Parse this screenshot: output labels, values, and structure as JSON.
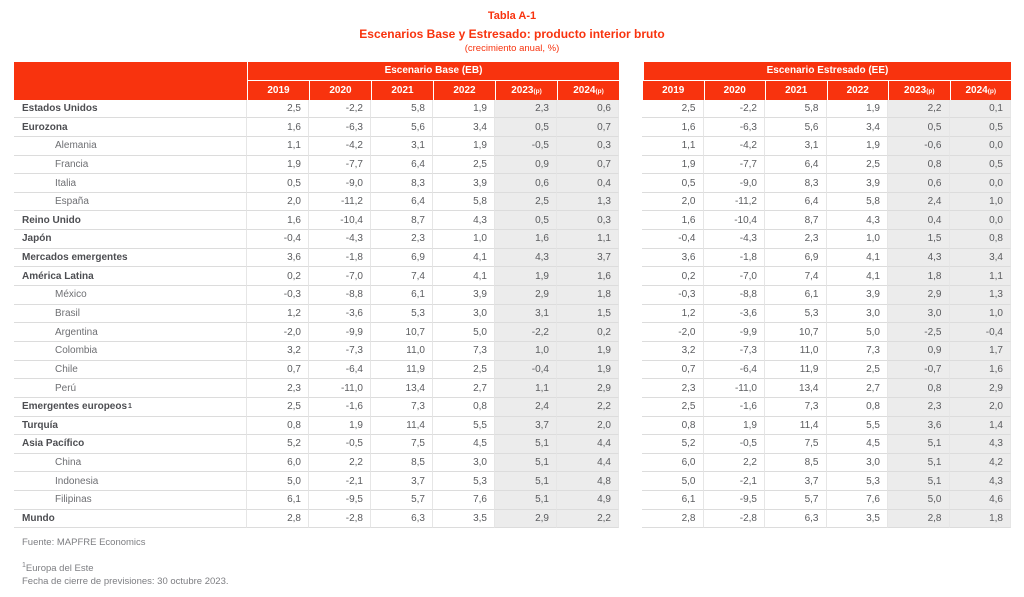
{
  "colors": {
    "accent": "#f8330e",
    "shade": "#ececec"
  },
  "title": {
    "table_number": "Tabla A-1",
    "heading": "Escenarios Base y Estresado: producto interior bruto",
    "unit": "(crecimiento anual, %)"
  },
  "table": {
    "panels": [
      {
        "name": "Escenario Base (EB)"
      },
      {
        "name": "Escenario Estresado (EE)"
      }
    ],
    "years": [
      {
        "label": "2019",
        "suffix": ""
      },
      {
        "label": "2020",
        "suffix": ""
      },
      {
        "label": "2021",
        "suffix": ""
      },
      {
        "label": "2022",
        "suffix": ""
      },
      {
        "label": "2023",
        "suffix": "(p)"
      },
      {
        "label": "2024",
        "suffix": "(p)"
      }
    ],
    "rows": [
      {
        "label": "Estados Unidos",
        "bold": true,
        "indent": false,
        "sup": "",
        "eb": [
          "2,5",
          "-2,2",
          "5,8",
          "1,9",
          "2,3",
          "0,6"
        ],
        "ee": [
          "2,5",
          "-2,2",
          "5,8",
          "1,9",
          "2,2",
          "0,1"
        ]
      },
      {
        "label": "Eurozona",
        "bold": true,
        "indent": false,
        "sup": "",
        "eb": [
          "1,6",
          "-6,3",
          "5,6",
          "3,4",
          "0,5",
          "0,7"
        ],
        "ee": [
          "1,6",
          "-6,3",
          "5,6",
          "3,4",
          "0,5",
          "0,5"
        ]
      },
      {
        "label": "Alemania",
        "bold": false,
        "indent": true,
        "sup": "",
        "eb": [
          "1,1",
          "-4,2",
          "3,1",
          "1,9",
          "-0,5",
          "0,3"
        ],
        "ee": [
          "1,1",
          "-4,2",
          "3,1",
          "1,9",
          "-0,6",
          "0,0"
        ]
      },
      {
        "label": "Francia",
        "bold": false,
        "indent": true,
        "sup": "",
        "eb": [
          "1,9",
          "-7,7",
          "6,4",
          "2,5",
          "0,9",
          "0,7"
        ],
        "ee": [
          "1,9",
          "-7,7",
          "6,4",
          "2,5",
          "0,8",
          "0,5"
        ]
      },
      {
        "label": "Italia",
        "bold": false,
        "indent": true,
        "sup": "",
        "eb": [
          "0,5",
          "-9,0",
          "8,3",
          "3,9",
          "0,6",
          "0,4"
        ],
        "ee": [
          "0,5",
          "-9,0",
          "8,3",
          "3,9",
          "0,6",
          "0,0"
        ]
      },
      {
        "label": "España",
        "bold": false,
        "indent": true,
        "sup": "",
        "eb": [
          "2,0",
          "-11,2",
          "6,4",
          "5,8",
          "2,5",
          "1,3"
        ],
        "ee": [
          "2,0",
          "-11,2",
          "6,4",
          "5,8",
          "2,4",
          "1,0"
        ]
      },
      {
        "label": "Reino Unido",
        "bold": true,
        "indent": false,
        "sup": "",
        "eb": [
          "1,6",
          "-10,4",
          "8,7",
          "4,3",
          "0,5",
          "0,3"
        ],
        "ee": [
          "1,6",
          "-10,4",
          "8,7",
          "4,3",
          "0,4",
          "0,0"
        ]
      },
      {
        "label": "Japón",
        "bold": true,
        "indent": false,
        "sup": "",
        "eb": [
          "-0,4",
          "-4,3",
          "2,3",
          "1,0",
          "1,6",
          "1,1"
        ],
        "ee": [
          "-0,4",
          "-4,3",
          "2,3",
          "1,0",
          "1,5",
          "0,8"
        ]
      },
      {
        "label": "Mercados emergentes",
        "bold": true,
        "indent": false,
        "sup": "",
        "eb": [
          "3,6",
          "-1,8",
          "6,9",
          "4,1",
          "4,3",
          "3,7"
        ],
        "ee": [
          "3,6",
          "-1,8",
          "6,9",
          "4,1",
          "4,3",
          "3,4"
        ]
      },
      {
        "label": "América Latina",
        "bold": true,
        "indent": false,
        "sup": "",
        "eb": [
          "0,2",
          "-7,0",
          "7,4",
          "4,1",
          "1,9",
          "1,6"
        ],
        "ee": [
          "0,2",
          "-7,0",
          "7,4",
          "4,1",
          "1,8",
          "1,1"
        ]
      },
      {
        "label": "México",
        "bold": false,
        "indent": true,
        "sup": "",
        "eb": [
          "-0,3",
          "-8,8",
          "6,1",
          "3,9",
          "2,9",
          "1,8"
        ],
        "ee": [
          "-0,3",
          "-8,8",
          "6,1",
          "3,9",
          "2,9",
          "1,3"
        ]
      },
      {
        "label": "Brasil",
        "bold": false,
        "indent": true,
        "sup": "",
        "eb": [
          "1,2",
          "-3,6",
          "5,3",
          "3,0",
          "3,1",
          "1,5"
        ],
        "ee": [
          "1,2",
          "-3,6",
          "5,3",
          "3,0",
          "3,0",
          "1,0"
        ]
      },
      {
        "label": "Argentina",
        "bold": false,
        "indent": true,
        "sup": "",
        "eb": [
          "-2,0",
          "-9,9",
          "10,7",
          "5,0",
          "-2,2",
          "0,2"
        ],
        "ee": [
          "-2,0",
          "-9,9",
          "10,7",
          "5,0",
          "-2,5",
          "-0,4"
        ]
      },
      {
        "label": "Colombia",
        "bold": false,
        "indent": true,
        "sup": "",
        "eb": [
          "3,2",
          "-7,3",
          "11,0",
          "7,3",
          "1,0",
          "1,9"
        ],
        "ee": [
          "3,2",
          "-7,3",
          "11,0",
          "7,3",
          "0,9",
          "1,7"
        ]
      },
      {
        "label": "Chile",
        "bold": false,
        "indent": true,
        "sup": "",
        "eb": [
          "0,7",
          "-6,4",
          "11,9",
          "2,5",
          "-0,4",
          "1,9"
        ],
        "ee": [
          "0,7",
          "-6,4",
          "11,9",
          "2,5",
          "-0,7",
          "1,6"
        ]
      },
      {
        "label": "Perú",
        "bold": false,
        "indent": true,
        "sup": "",
        "eb": [
          "2,3",
          "-11,0",
          "13,4",
          "2,7",
          "1,1",
          "2,9"
        ],
        "ee": [
          "2,3",
          "-11,0",
          "13,4",
          "2,7",
          "0,8",
          "2,9"
        ]
      },
      {
        "label": "Emergentes europeos",
        "bold": true,
        "indent": false,
        "sup": "1",
        "eb": [
          "2,5",
          "-1,6",
          "7,3",
          "0,8",
          "2,4",
          "2,2"
        ],
        "ee": [
          "2,5",
          "-1,6",
          "7,3",
          "0,8",
          "2,3",
          "2,0"
        ]
      },
      {
        "label": "Turquía",
        "bold": true,
        "indent": false,
        "sup": "",
        "eb": [
          "0,8",
          "1,9",
          "11,4",
          "5,5",
          "3,7",
          "2,0"
        ],
        "ee": [
          "0,8",
          "1,9",
          "11,4",
          "5,5",
          "3,6",
          "1,4"
        ]
      },
      {
        "label": "Asia Pacífico",
        "bold": true,
        "indent": false,
        "sup": "",
        "eb": [
          "5,2",
          "-0,5",
          "7,5",
          "4,5",
          "5,1",
          "4,4"
        ],
        "ee": [
          "5,2",
          "-0,5",
          "7,5",
          "4,5",
          "5,1",
          "4,3"
        ]
      },
      {
        "label": "China",
        "bold": false,
        "indent": true,
        "sup": "",
        "eb": [
          "6,0",
          "2,2",
          "8,5",
          "3,0",
          "5,1",
          "4,4"
        ],
        "ee": [
          "6,0",
          "2,2",
          "8,5",
          "3,0",
          "5,1",
          "4,2"
        ]
      },
      {
        "label": "Indonesia",
        "bold": false,
        "indent": true,
        "sup": "",
        "eb": [
          "5,0",
          "-2,1",
          "3,7",
          "5,3",
          "5,1",
          "4,8"
        ],
        "ee": [
          "5,0",
          "-2,1",
          "3,7",
          "5,3",
          "5,1",
          "4,3"
        ]
      },
      {
        "label": "Filipinas",
        "bold": false,
        "indent": true,
        "sup": "",
        "eb": [
          "6,1",
          "-9,5",
          "5,7",
          "7,6",
          "5,1",
          "4,9"
        ],
        "ee": [
          "6,1",
          "-9,5",
          "5,7",
          "7,6",
          "5,0",
          "4,6"
        ]
      },
      {
        "label": "Mundo",
        "bold": true,
        "indent": false,
        "sup": "",
        "eb": [
          "2,8",
          "-2,8",
          "6,3",
          "3,5",
          "2,9",
          "2,2"
        ],
        "ee": [
          "2,8",
          "-2,8",
          "6,3",
          "3,5",
          "2,8",
          "1,8"
        ]
      }
    ]
  },
  "footer": {
    "source": "Fuente: MAPFRE Economics",
    "footnote_mark": "1",
    "footnote_text": "Europa del Este",
    "closing_date": "Fecha de cierre de previsiones: 30 octubre 2023."
  }
}
